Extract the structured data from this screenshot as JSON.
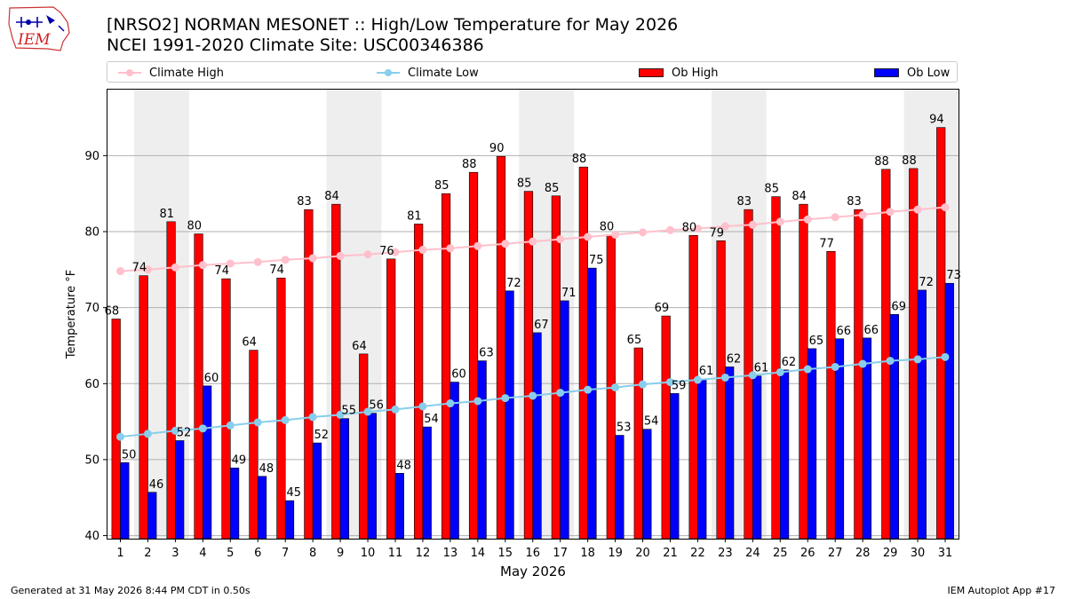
{
  "header": {
    "logo_text": "IEM",
    "title_line1": "[NRSO2] NORMAN MESONET :: High/Low Temperature for May 2026",
    "title_line2": "NCEI 1991-2020 Climate Site: USC00346386"
  },
  "legend": [
    {
      "label": "Climate High",
      "color": "#ffc0cb",
      "marker": "line-dot"
    },
    {
      "label": "Climate Low",
      "color": "#87ceeb",
      "marker": "line-dot"
    },
    {
      "label": "Ob High",
      "color": "#ff0000",
      "marker": "box"
    },
    {
      "label": "Ob Low",
      "color": "#0000ff",
      "marker": "box"
    }
  ],
  "chart_data": {
    "type": "bar",
    "xlabel": "May 2026",
    "ylabel": "Temperature °F",
    "ylim": [
      39.6,
      98.8
    ],
    "yticks": [
      40,
      50,
      60,
      70,
      80,
      90
    ],
    "grid": true,
    "legend_position": "top",
    "categories": [
      "1",
      "2",
      "3",
      "4",
      "5",
      "6",
      "7",
      "8",
      "9",
      "10",
      "11",
      "12",
      "13",
      "14",
      "15",
      "16",
      "17",
      "18",
      "19",
      "20",
      "21",
      "22",
      "23",
      "24",
      "25",
      "26",
      "27",
      "28",
      "29",
      "30",
      "31"
    ],
    "weekend_shading_days": [
      [
        2,
        3
      ],
      [
        9,
        10
      ],
      [
        16,
        17
      ],
      [
        23,
        24
      ],
      [
        30,
        31
      ]
    ],
    "shade_color": "#eeeeee",
    "series": [
      {
        "name": "Ob High",
        "kind": "bar",
        "color": "#ff0000",
        "values": [
          68.5,
          74.2,
          81.3,
          79.7,
          73.8,
          64.4,
          73.9,
          82.9,
          83.6,
          63.9,
          76.4,
          81.0,
          85.0,
          87.8,
          89.9,
          85.3,
          84.7,
          88.5,
          79.6,
          64.7,
          68.9,
          79.5,
          78.8,
          82.9,
          84.6,
          83.6,
          77.4,
          82.9,
          88.2,
          88.3,
          93.7
        ],
        "labels": [
          "68",
          "74",
          "81",
          "80",
          "74",
          "64",
          "74",
          "83",
          "84",
          "64",
          "76",
          "81",
          "85",
          "88",
          "90",
          "85",
          "85",
          "88",
          "80",
          "65",
          "69",
          "80",
          "79",
          "83",
          "85",
          "84",
          "77",
          "83",
          "88",
          "88",
          "94"
        ]
      },
      {
        "name": "Ob Low",
        "kind": "bar",
        "color": "#0000ff",
        "values": [
          49.6,
          45.7,
          52.5,
          59.7,
          48.9,
          47.8,
          44.6,
          52.2,
          55.4,
          56.1,
          48.2,
          54.3,
          60.2,
          63.0,
          72.2,
          66.7,
          70.9,
          75.2,
          53.2,
          54.0,
          58.7,
          60.6,
          62.2,
          61.0,
          61.8,
          64.6,
          65.9,
          66.0,
          69.1,
          72.3,
          73.2
        ],
        "labels": [
          "50",
          "46",
          "52",
          "60",
          "49",
          "48",
          "45",
          "52",
          "55",
          "56",
          "48",
          "54",
          "60",
          "63",
          "72",
          "67",
          "71",
          "75",
          "53",
          "54",
          "59",
          "61",
          "62",
          "61",
          "62",
          "65",
          "66",
          "66",
          "69",
          "72",
          "73"
        ]
      },
      {
        "name": "Climate High",
        "kind": "line",
        "color": "#ffc0cb",
        "values": [
          74.8,
          75.0,
          75.3,
          75.6,
          75.8,
          76.0,
          76.3,
          76.5,
          76.8,
          77.0,
          77.3,
          77.6,
          77.8,
          78.1,
          78.4,
          78.7,
          79.0,
          79.3,
          79.6,
          79.9,
          80.2,
          80.4,
          80.7,
          80.9,
          81.3,
          81.6,
          81.9,
          82.2,
          82.6,
          82.9,
          83.2
        ]
      },
      {
        "name": "Climate Low",
        "kind": "line",
        "color": "#87ceeb",
        "values": [
          53.0,
          53.4,
          53.8,
          54.1,
          54.5,
          54.9,
          55.2,
          55.6,
          55.9,
          56.3,
          56.6,
          57.0,
          57.4,
          57.7,
          58.1,
          58.4,
          58.8,
          59.2,
          59.5,
          59.9,
          60.2,
          60.5,
          60.8,
          61.1,
          61.5,
          61.9,
          62.2,
          62.6,
          63.0,
          63.2,
          63.5
        ]
      }
    ]
  },
  "footer": {
    "generated": "Generated at 31 May 2026 8:44 PM CDT in 0.50s",
    "app": "IEM Autoplot App #17"
  }
}
